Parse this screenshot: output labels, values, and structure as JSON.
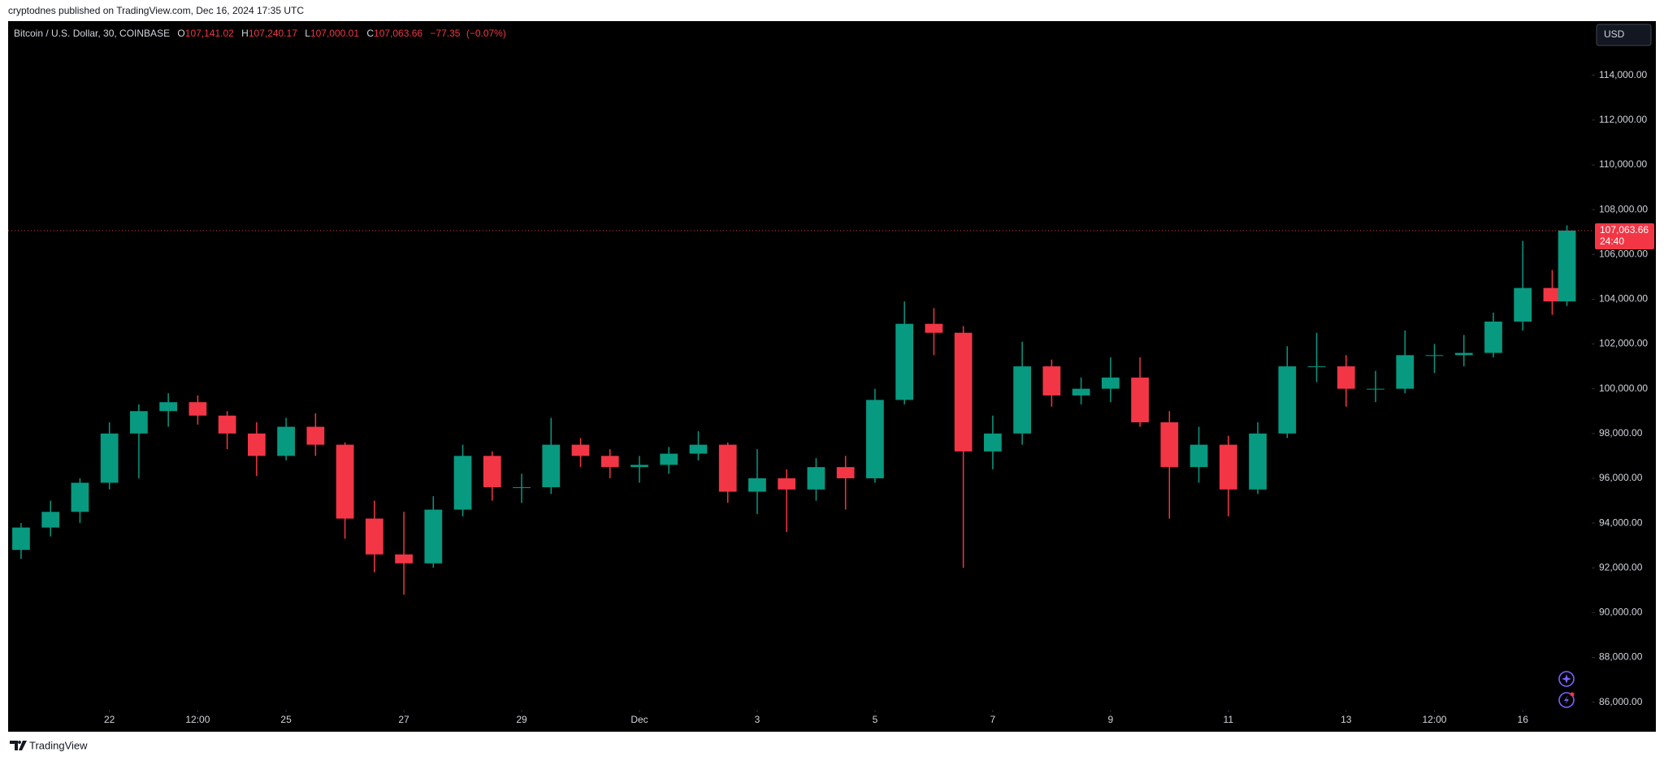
{
  "header": {
    "published": "cryptodnes published on TradingView.com, Dec 16, 2024 17:35 UTC"
  },
  "footer": {
    "brand": "TradingView"
  },
  "chart_data": {
    "type": "candlestick",
    "title": "Bitcoin / U.S. Dollar, 30, COINBASE",
    "ohlc": [
      {
        "key": "O",
        "value": 107141.02,
        "label": "107,141.02"
      },
      {
        "key": "H",
        "value": 107240.17,
        "label": "107,240.17"
      },
      {
        "key": "L",
        "value": 107000.01,
        "label": "107,000.01"
      },
      {
        "key": "C",
        "value": 107063.66,
        "label": "107,063.66"
      }
    ],
    "change": {
      "value": -77.35,
      "label": "−77.35"
    },
    "change_pct": {
      "value": -0.07,
      "label": "(−0.07%)"
    },
    "currency": "USD",
    "last_price": {
      "value": 107063.66,
      "label": "107,063.66"
    },
    "countdown": "24:40",
    "up_color": "#089981",
    "down_color": "#f23645",
    "grid": false,
    "x": [
      20.5,
      21,
      21.5,
      22,
      22.5,
      23,
      23.5,
      24,
      24.5,
      25,
      25.5,
      26,
      26.5,
      27,
      27.5,
      28,
      28.5,
      29,
      29.5,
      30,
      30.5,
      31,
      31.5,
      32,
      32.5,
      33,
      33.5,
      34,
      34.5,
      35,
      35.5,
      36,
      36.5,
      37,
      37.5,
      38,
      38.5,
      39,
      39.5,
      40,
      40.5,
      41,
      41.5,
      42,
      42.5,
      43,
      43.5,
      44,
      44.5,
      45,
      45.5,
      46,
      46.5,
      46.75
    ],
    "open": [
      92800,
      93800,
      94500,
      95800,
      98000,
      99000,
      99400,
      98800,
      98000,
      97000,
      98300,
      97500,
      94200,
      92600,
      92200,
      94600,
      97000,
      95600,
      95600,
      97500,
      97000,
      96500,
      96600,
      97100,
      97500,
      95400,
      96000,
      95500,
      96500,
      96000,
      99500,
      102900,
      102500,
      97200,
      98000,
      101000,
      99700,
      100000,
      100500,
      98500,
      96500,
      97500,
      95500,
      98000,
      101000,
      101000,
      100000,
      100000,
      101500,
      101500,
      101600,
      103000,
      104500,
      103900
    ],
    "high": [
      94000,
      95000,
      96000,
      98500,
      99300,
      99800,
      99700,
      99000,
      98500,
      98700,
      98900,
      97600,
      95000,
      94500,
      95200,
      97500,
      97200,
      96200,
      98700,
      97800,
      97300,
      97000,
      97400,
      98100,
      97600,
      97300,
      96400,
      96900,
      97000,
      100000,
      103900,
      103600,
      102800,
      98800,
      102100,
      101300,
      100500,
      101400,
      101400,
      99000,
      98300,
      97900,
      98500,
      101900,
      102500,
      101500,
      100800,
      102600,
      102000,
      102400,
      103400,
      106600,
      105300,
      107300
    ],
    "low": [
      92400,
      93400,
      94000,
      95500,
      96000,
      98300,
      98400,
      97300,
      96100,
      96800,
      97000,
      93300,
      91800,
      90800,
      92000,
      94300,
      95000,
      94900,
      95300,
      96500,
      96000,
      95800,
      96200,
      96800,
      94900,
      94400,
      93600,
      95000,
      94600,
      95800,
      99300,
      101500,
      92000,
      96400,
      97500,
      99200,
      99300,
      99400,
      98300,
      94200,
      95800,
      94300,
      95300,
      97800,
      100300,
      99200,
      99400,
      99800,
      100700,
      101000,
      101400,
      102600,
      103300,
      103700
    ],
    "close": [
      93800,
      94500,
      95800,
      98000,
      99000,
      99400,
      98800,
      98000,
      97000,
      98300,
      97500,
      94200,
      92600,
      92200,
      94600,
      97000,
      95600,
      95600,
      97500,
      97000,
      96500,
      96600,
      97100,
      97500,
      95400,
      96000,
      95500,
      96500,
      96000,
      99500,
      102900,
      102500,
      97200,
      98000,
      101000,
      99700,
      100000,
      100500,
      98500,
      96500,
      97500,
      95500,
      98000,
      101000,
      101000,
      100000,
      100000,
      101500,
      101500,
      101600,
      103000,
      104500,
      103900,
      107063.66
    ],
    "xlim": [
      20.28,
      47.17
    ],
    "xticks": [
      22,
      {
        "value": 23.5,
        "label": "12:00"
      },
      25,
      27,
      29,
      {
        "value": 31,
        "label": "Dec"
      },
      {
        "value": 33,
        "label": "3"
      },
      {
        "value": 35,
        "label": "5"
      },
      {
        "value": 37,
        "label": "7"
      },
      {
        "value": 39,
        "label": "9"
      },
      {
        "value": 41,
        "label": "11"
      },
      {
        "value": 43,
        "label": "13"
      },
      {
        "value": 44.5,
        "label": "12:00"
      },
      {
        "value": 46,
        "label": "16"
      }
    ],
    "ylim": [
      85660,
      116420
    ],
    "yticks": [
      {
        "value": 86000,
        "label": "86,000.00"
      },
      {
        "value": 88000,
        "label": "88,000.00"
      },
      {
        "value": 90000,
        "label": "90,000.00"
      },
      {
        "value": 92000,
        "label": "92,000.00"
      },
      {
        "value": 94000,
        "label": "94,000.00"
      },
      {
        "value": 96000,
        "label": "96,000.00"
      },
      {
        "value": 98000,
        "label": "98,000.00"
      },
      {
        "value": 100000,
        "label": "100,000.00"
      },
      {
        "value": 102000,
        "label": "102,000.00"
      },
      {
        "value": 104000,
        "label": "104,000.00"
      },
      {
        "value": 106000,
        "label": "106,000.00"
      },
      {
        "value": 108000,
        "label": "108,000.00"
      },
      {
        "value": 110000,
        "label": "110,000.00"
      },
      {
        "value": 112000,
        "label": "112,000.00"
      },
      {
        "value": 114000,
        "label": "114,000.00"
      }
    ]
  }
}
